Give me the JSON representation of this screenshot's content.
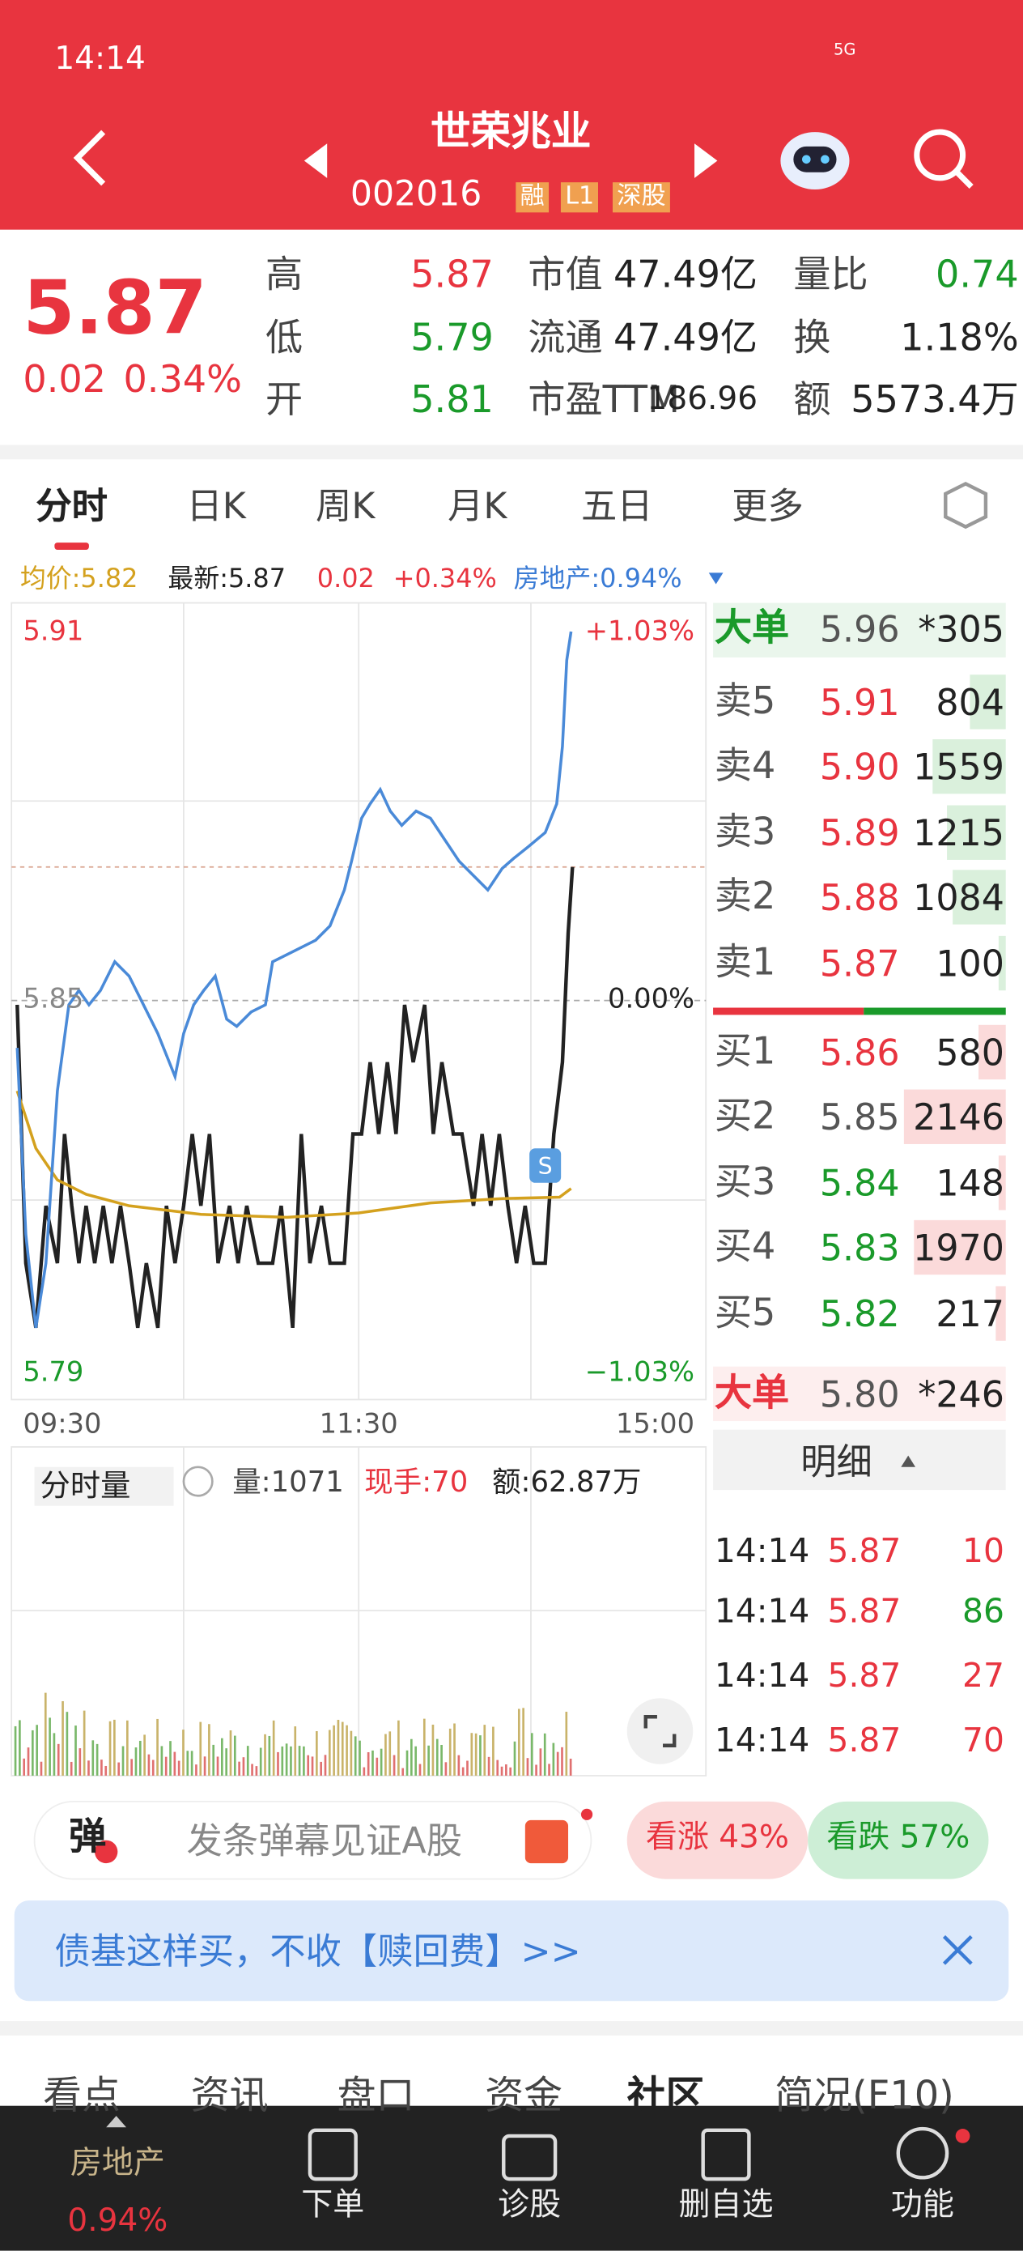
{
  "status_bar": {
    "time": "14:14",
    "network": "5G"
  },
  "header": {
    "title": "世荣兆业",
    "code": "002016",
    "tags": [
      "融",
      "L1",
      "深股"
    ]
  },
  "quote": {
    "price": "5.87",
    "change": "0.02",
    "percent": "0.34%",
    "fields": [
      {
        "label": "高",
        "value": "5.87"
      },
      {
        "label": "低",
        "value": "5.79"
      },
      {
        "label": "开",
        "value": "5.81"
      },
      {
        "label": "市值",
        "value": "47.49亿"
      },
      {
        "label": "流通",
        "value": "47.49亿"
      },
      {
        "label": "市盈TTM",
        "value": "186.96"
      },
      {
        "label": "量比",
        "value": "0.74"
      },
      {
        "label": "换",
        "value": "1.18%"
      },
      {
        "label": "额",
        "value": "5573.4万"
      }
    ]
  },
  "tabs": [
    "分时",
    "日K",
    "周K",
    "月K",
    "五日",
    "更多"
  ],
  "chart_info": {
    "average": "均价:5.82",
    "latest": "最新:5.87",
    "change": "0.02",
    "percent": "+0.34%",
    "sector": "房地产:0.94%"
  },
  "price_axis": {
    "high": "5.91",
    "high_pct": "+1.03%",
    "mid": "5.85",
    "mid_pct": "0.00%",
    "low": "5.79",
    "low_pct": "−1.03%"
  },
  "time_axis": [
    "09:30",
    "11:30",
    "15:00"
  ],
  "order_book": {
    "big_sell": {
      "label": "大单",
      "price": "5.96",
      "volume": "*305"
    },
    "asks": [
      {
        "label": "卖5",
        "price": "5.91",
        "volume": "804"
      },
      {
        "label": "卖4",
        "price": "5.90",
        "volume": "1559"
      },
      {
        "label": "卖3",
        "price": "5.89",
        "volume": "1215"
      },
      {
        "label": "卖2",
        "price": "5.88",
        "volume": "1084"
      },
      {
        "label": "卖1",
        "price": "5.87",
        "volume": "100"
      }
    ],
    "bids": [
      {
        "label": "买1",
        "price": "5.86",
        "volume": "580"
      },
      {
        "label": "买2",
        "price": "5.85",
        "volume": "2146"
      },
      {
        "label": "买3",
        "price": "5.84",
        "volume": "148"
      },
      {
        "label": "买4",
        "price": "5.83",
        "volume": "1970"
      },
      {
        "label": "买5",
        "price": "5.82",
        "volume": "217"
      }
    ],
    "big_buy": {
      "label": "大单",
      "price": "5.80",
      "volume": "*246"
    },
    "detail_button": "明细",
    "trades": [
      {
        "time": "14:14",
        "price": "5.87",
        "volume": "10"
      },
      {
        "time": "14:14",
        "price": "5.87",
        "volume": "86"
      },
      {
        "time": "14:14",
        "price": "5.87",
        "volume": "27"
      },
      {
        "time": "14:14",
        "price": "5.87",
        "volume": "70"
      }
    ]
  },
  "volume_info": {
    "selector": "分时量",
    "volume": "量:1071",
    "current": "现手:70",
    "amount": "额:62.87万"
  },
  "danmu": {
    "icon": "弹",
    "placeholder": "发条弹幕见证A股"
  },
  "sentiment": {
    "up": "看涨 43%",
    "down": "看跌 57%"
  },
  "banner": "债基这样买，不收【赎回费】>>",
  "section_tabs": [
    "看点",
    "资讯",
    "盘口",
    "资金",
    "社区",
    "简况(F10)"
  ],
  "bottom_nav": {
    "sector": "房地产",
    "sector_change": "0.94%",
    "items": [
      "下单",
      "诊股",
      "删自选",
      "功能"
    ]
  }
}
